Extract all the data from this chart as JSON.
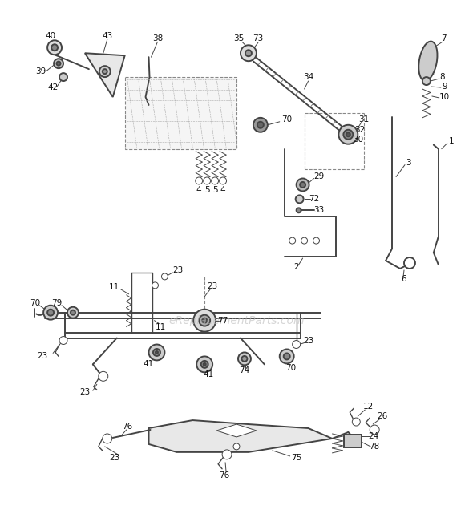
{
  "bg_color": "#ffffff",
  "line_color": "#444444",
  "watermark": "eReplacementParts.com",
  "watermark_color": "#bbbbbb",
  "fig_width": 5.9,
  "fig_height": 6.51,
  "dpi": 100
}
